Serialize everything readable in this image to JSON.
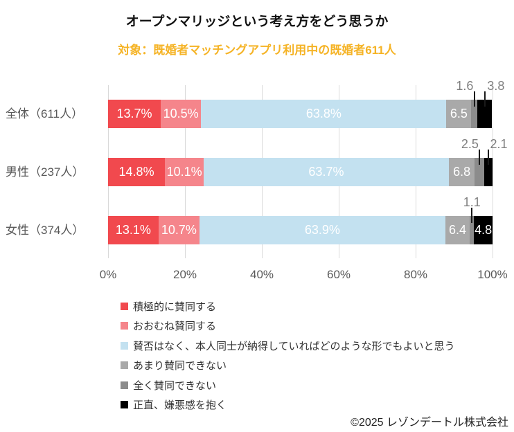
{
  "title": "オープンマリッジという考え方をどう思うか",
  "subtitle": "対象：既婚者マッチングアプリ利用中の既婚者611人",
  "subtitle_color": "#f5b325",
  "footer": "©2025 レゾンデートル株式会社",
  "chart_data": {
    "type": "bar",
    "stacked": true,
    "orientation": "horizontal",
    "title": "オープンマリッジという考え方をどう思うか",
    "subtitle": "対象：既婚者マッチングアプリ利用中の既婚者611人",
    "categories": [
      "全体（611人）",
      "男性（237人）",
      "女性（374人）"
    ],
    "series": [
      {
        "name": "積極的に賛同する",
        "color": "#f1494e",
        "values": [
          13.7,
          14.8,
          13.1
        ]
      },
      {
        "name": "おおむね賛同する",
        "color": "#f5858b",
        "values": [
          10.5,
          10.1,
          10.7
        ]
      },
      {
        "name": "賛否はなく、本人同士が納得していればどのような形でもよいと思う",
        "color": "#c3e1f0",
        "values": [
          63.8,
          63.7,
          63.9
        ]
      },
      {
        "name": "あまり賛同できない",
        "color": "#a9a9a9",
        "values": [
          6.5,
          6.8,
          6.4
        ]
      },
      {
        "name": "全く賛同できない",
        "color": "#8c8c8c",
        "values": [
          1.6,
          2.5,
          1.1
        ]
      },
      {
        "name": "正直、嫌悪感を抱く",
        "color": "#000000",
        "values": [
          3.8,
          2.1,
          4.8
        ]
      }
    ],
    "data_labels": [
      [
        "13.7%",
        "10.5%",
        "63.8%",
        "6.5",
        "1.6",
        "3.8"
      ],
      [
        "14.8%",
        "10.1%",
        "63.7%",
        "6.8",
        "2.5",
        "2.1"
      ],
      [
        "13.1%",
        "10.7%",
        "63.9%",
        "6.4",
        "1.1",
        "4.8"
      ]
    ],
    "label_placement": [
      [
        "inside",
        "inside",
        "inside",
        "inside",
        "above",
        "above"
      ],
      [
        "inside",
        "inside",
        "inside",
        "inside",
        "above",
        "above"
      ],
      [
        "inside",
        "inside",
        "inside",
        "inside",
        "above",
        "inside"
      ]
    ],
    "x_ticks": [
      {
        "label": "0%",
        "value": 0
      },
      {
        "label": "20%",
        "value": 20
      },
      {
        "label": "40%",
        "value": 40
      },
      {
        "label": "60%",
        "value": 60
      },
      {
        "label": "80%",
        "value": 80
      },
      {
        "label": "100%",
        "value": 100
      }
    ],
    "xlim": [
      0,
      100
    ],
    "grid": true,
    "legend_position": "bottom-left"
  }
}
